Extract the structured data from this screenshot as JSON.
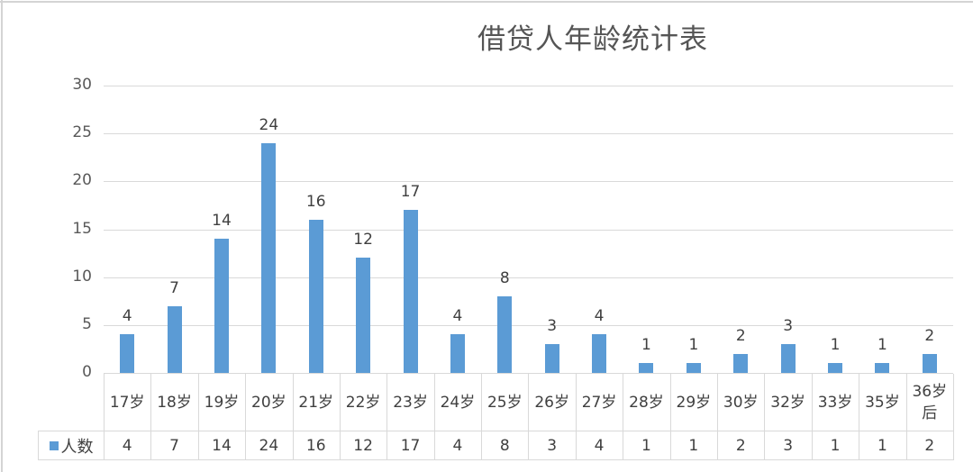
{
  "chart_data": {
    "type": "bar",
    "title": "借贷人年龄统计表",
    "xlabel": "",
    "ylabel": "",
    "ylim": [
      0,
      30
    ],
    "yticks": [
      0,
      5,
      10,
      15,
      20,
      25,
      30
    ],
    "grid": true,
    "legend_position": "data-table",
    "data_table": true,
    "categories": [
      "17岁",
      "18岁",
      "19岁",
      "20岁",
      "21岁",
      "22岁",
      "23岁",
      "24岁",
      "25岁",
      "26岁",
      "27岁",
      "28岁",
      "29岁",
      "30岁",
      "32岁",
      "33岁",
      "35岁",
      "36岁后"
    ],
    "series": [
      {
        "name": "人数",
        "color": "#5b9bd5",
        "values": [
          4,
          7,
          14,
          24,
          16,
          12,
          17,
          4,
          8,
          3,
          4,
          1,
          1,
          2,
          3,
          1,
          1,
          2
        ]
      }
    ]
  },
  "legend": {
    "series_label": "人数",
    "swatch_color": "#5b9bd5"
  }
}
